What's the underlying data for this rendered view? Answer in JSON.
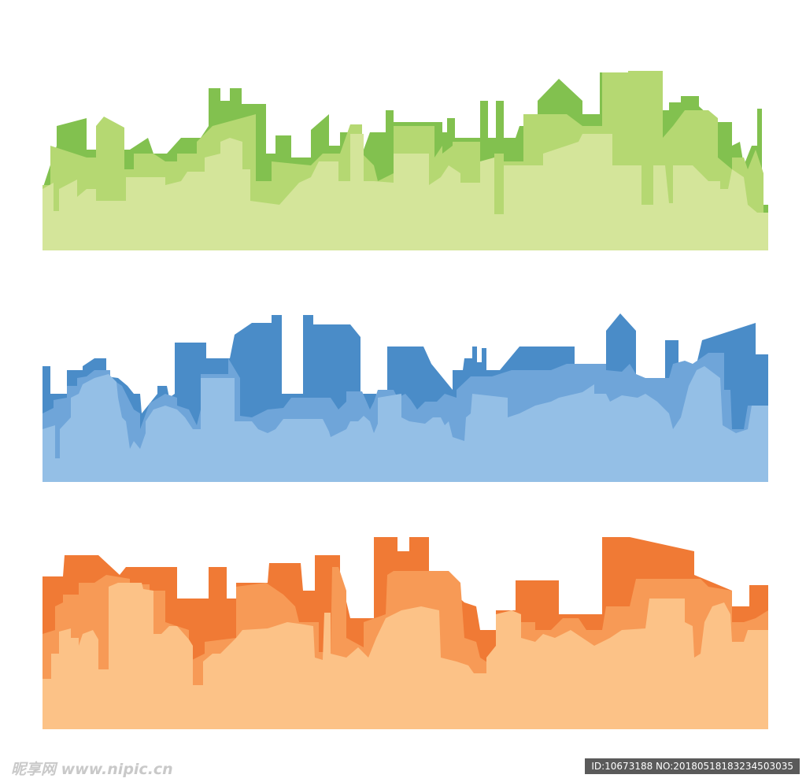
{
  "watermark": {
    "site": "昵享网 www.nipic.cn",
    "id": "ID:10673188 NO:20180518183234503035"
  }
}
